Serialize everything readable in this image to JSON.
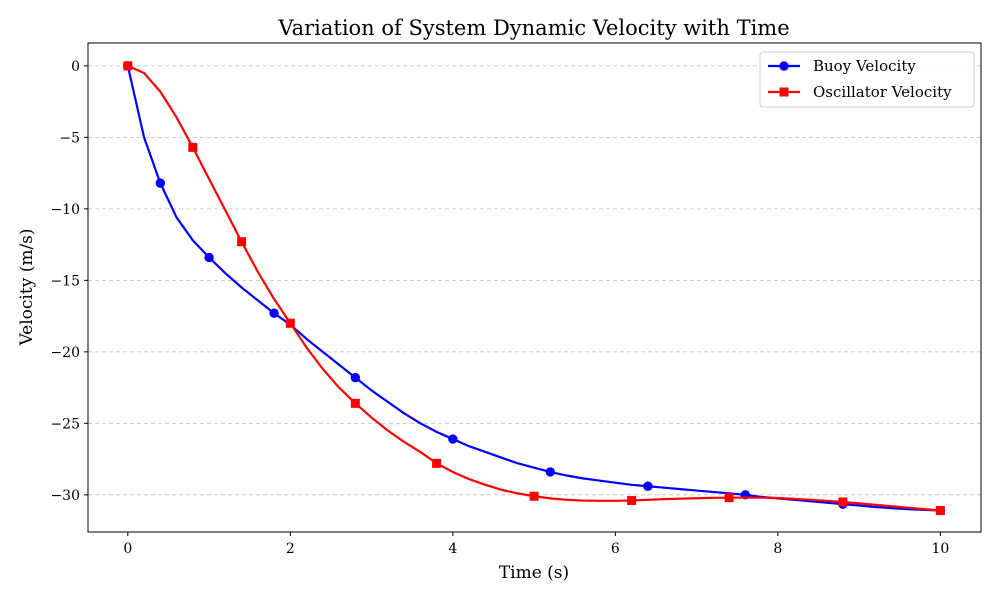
{
  "chart_data": {
    "type": "line",
    "title": "Variation of System Dynamic Velocity with Time",
    "xlabel": "Time (s)",
    "ylabel": "Velocity (m/s)",
    "xlim": [
      -0.49,
      10.5
    ],
    "ylim": [
      -32.6,
      1.6
    ],
    "xticks": [
      0,
      2,
      4,
      6,
      8,
      10
    ],
    "yticks": [
      0,
      -5,
      -10,
      -15,
      -20,
      -25,
      -30
    ],
    "grid": "horizontal dashed",
    "legend_position": "top-right",
    "series": [
      {
        "name": "Buoy Velocity",
        "color": "#0000ff",
        "marker": "circle",
        "x": [
          0,
          0.2,
          0.4,
          0.6,
          0.8,
          1.0,
          1.2,
          1.4,
          1.6,
          1.8,
          2.0,
          2.2,
          2.4,
          2.6,
          2.8,
          3.0,
          3.2,
          3.4,
          3.6,
          3.8,
          4.0,
          4.2,
          4.4,
          4.6,
          4.8,
          5.0,
          5.2,
          5.4,
          5.6,
          5.8,
          6.0,
          6.2,
          6.4,
          6.6,
          6.8,
          7.0,
          7.2,
          7.4,
          7.6,
          7.8,
          8.0,
          8.2,
          8.4,
          8.6,
          8.8,
          9.0,
          9.2,
          9.4,
          9.6,
          9.8,
          10.0
        ],
        "values": [
          0,
          -5.0,
          -8.2,
          -10.6,
          -12.2,
          -13.4,
          -14.5,
          -15.5,
          -16.4,
          -17.3,
          -18.1,
          -19.1,
          -20.0,
          -20.9,
          -21.8,
          -22.7,
          -23.5,
          -24.3,
          -25.0,
          -25.6,
          -26.1,
          -26.6,
          -27.0,
          -27.4,
          -27.8,
          -28.1,
          -28.4,
          -28.65,
          -28.85,
          -29.0,
          -29.15,
          -29.3,
          -29.4,
          -29.5,
          -29.6,
          -29.7,
          -29.8,
          -29.9,
          -30.0,
          -30.15,
          -30.25,
          -30.35,
          -30.45,
          -30.55,
          -30.65,
          -30.75,
          -30.85,
          -30.93,
          -31.0,
          -31.05,
          -31.1
        ],
        "marker_indices": [
          0,
          2,
          5,
          9,
          14,
          20,
          26,
          32,
          38,
          44,
          50
        ]
      },
      {
        "name": "Oscillator Velocity",
        "color": "#ff0000",
        "marker": "square",
        "x": [
          0,
          0.2,
          0.4,
          0.6,
          0.8,
          1.0,
          1.2,
          1.4,
          1.6,
          1.8,
          2.0,
          2.2,
          2.4,
          2.6,
          2.8,
          3.0,
          3.2,
          3.4,
          3.6,
          3.8,
          4.0,
          4.2,
          4.4,
          4.6,
          4.8,
          5.0,
          5.2,
          5.4,
          5.6,
          5.8,
          6.0,
          6.2,
          6.4,
          6.6,
          6.8,
          7.0,
          7.2,
          7.4,
          7.6,
          7.8,
          8.0,
          8.2,
          8.4,
          8.6,
          8.8,
          9.0,
          9.2,
          9.4,
          9.6,
          9.8,
          10.0
        ],
        "values": [
          0,
          -0.5,
          -1.8,
          -3.6,
          -5.7,
          -7.9,
          -10.1,
          -12.3,
          -14.4,
          -16.3,
          -18.0,
          -19.7,
          -21.2,
          -22.5,
          -23.6,
          -24.6,
          -25.5,
          -26.3,
          -27.0,
          -27.8,
          -28.4,
          -28.9,
          -29.3,
          -29.65,
          -29.9,
          -30.1,
          -30.25,
          -30.35,
          -30.4,
          -30.42,
          -30.42,
          -30.4,
          -30.35,
          -30.3,
          -30.27,
          -30.24,
          -30.21,
          -30.2,
          -30.19,
          -30.2,
          -30.22,
          -30.28,
          -30.35,
          -30.42,
          -30.5,
          -30.6,
          -30.7,
          -30.8,
          -30.9,
          -31.0,
          -31.1
        ],
        "marker_indices": [
          0,
          4,
          7,
          10,
          14,
          19,
          25,
          31,
          37,
          44,
          50
        ]
      }
    ]
  }
}
